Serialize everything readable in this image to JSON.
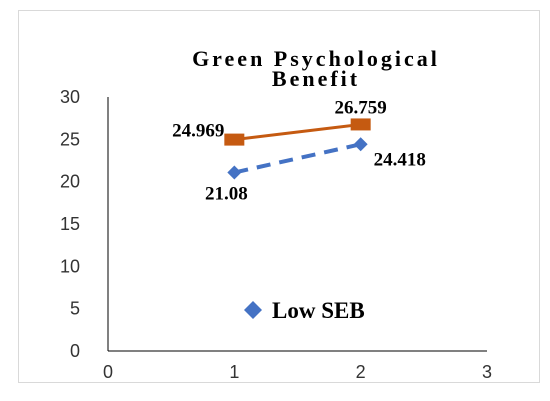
{
  "chart_data": {
    "type": "line",
    "title_lines": [
      "Green Psychological",
      "Benefit"
    ],
    "xlabel": "",
    "ylabel": "",
    "xlim": [
      0,
      3
    ],
    "ylim": [
      0,
      30
    ],
    "x_ticks": [
      "0",
      "1",
      "2",
      "3"
    ],
    "y_ticks": [
      "0",
      "5",
      "10",
      "15",
      "20",
      "25",
      "30"
    ],
    "grid": false,
    "legend_position": "bottom-center",
    "series": [
      {
        "name": "Low SEB",
        "x": [
          1,
          2
        ],
        "values": [
          21.08,
          24.418
        ],
        "labels": [
          "21.08",
          "24.418"
        ],
        "color": "#4472c4",
        "line_style": "dashed",
        "marker": "diamond",
        "show_in_legend": true
      },
      {
        "x": [
          1,
          2
        ],
        "values": [
          24.969,
          26.759
        ],
        "labels": [
          "24.969",
          "26.759"
        ],
        "color": "#c55a11",
        "line_style": "solid",
        "marker": "square",
        "show_in_legend": false
      }
    ]
  }
}
